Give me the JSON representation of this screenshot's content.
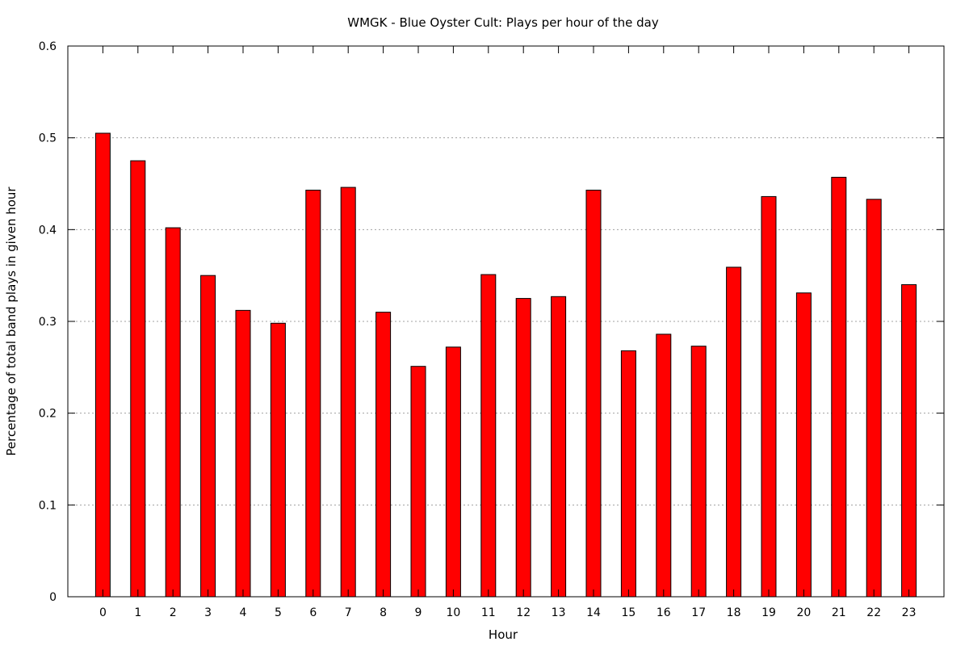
{
  "chart_data": {
    "type": "bar",
    "title": "WMGK - Blue Oyster Cult: Plays per hour of the day",
    "xlabel": "Hour",
    "ylabel": "Percentage of total band plays in given hour",
    "ylim": [
      0,
      0.6
    ],
    "yticks": [
      "0",
      "0.1",
      "0.2",
      "0.3",
      "0.4",
      "0.5",
      "0.6"
    ],
    "grid": "horizontal dotted",
    "categories": [
      "0",
      "1",
      "2",
      "3",
      "4",
      "5",
      "6",
      "7",
      "8",
      "9",
      "10",
      "11",
      "12",
      "13",
      "14",
      "15",
      "16",
      "17",
      "18",
      "19",
      "20",
      "21",
      "22",
      "23"
    ],
    "values": [
      0.505,
      0.475,
      0.402,
      0.35,
      0.312,
      0.298,
      0.443,
      0.446,
      0.31,
      0.251,
      0.272,
      0.351,
      0.325,
      0.327,
      0.443,
      0.268,
      0.286,
      0.273,
      0.359,
      0.436,
      0.331,
      0.457,
      0.433,
      0.34
    ],
    "bar_color": "#ff0000"
  }
}
